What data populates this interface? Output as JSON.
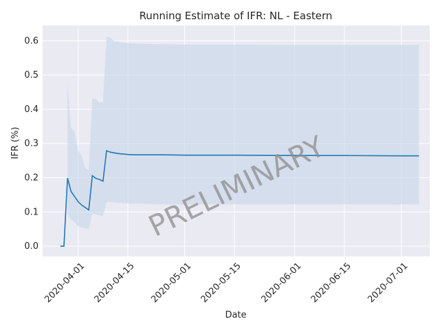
{
  "chart_data": {
    "type": "line",
    "title": "Running Estimate of IFR: NL - Eastern",
    "xlabel": "Date",
    "ylabel": "IFR (%)",
    "xlim": [
      "2020-03-22",
      "2020-07-09"
    ],
    "ylim": [
      -0.03,
      0.645
    ],
    "grid": true,
    "x_tick_labels": [
      "2020-04-01",
      "2020-04-15",
      "2020-05-01",
      "2020-05-15",
      "2020-06-01",
      "2020-06-15",
      "2020-07-01"
    ],
    "y_tick_labels": [
      "0.0",
      "0.1",
      "0.2",
      "0.3",
      "0.4",
      "0.5",
      "0.6"
    ],
    "watermark": "PRELIMINARY",
    "colors": {
      "line": "#1f77b4",
      "band": "#c6d6ea",
      "plot_bg": "#eaeaf2",
      "grid": "#ffffff",
      "watermark": "#8c8c8c"
    },
    "series": [
      {
        "x": [
          "2020-03-27",
          "2020-03-28",
          "2020-03-29",
          "2020-03-30",
          "2020-03-31",
          "2020-04-01",
          "2020-04-02",
          "2020-04-03",
          "2020-04-04",
          "2020-04-05",
          "2020-04-06",
          "2020-04-07",
          "2020-04-08",
          "2020-04-09",
          "2020-04-10",
          "2020-04-11",
          "2020-04-12",
          "2020-04-13",
          "2020-04-14",
          "2020-04-15",
          "2020-04-17",
          "2020-04-20",
          "2020-04-25",
          "2020-05-01",
          "2020-05-15",
          "2020-06-01",
          "2020-06-15",
          "2020-07-01",
          "2020-07-06"
        ],
        "values": [
          0.0,
          0.0,
          0.199,
          0.16,
          0.145,
          0.13,
          0.12,
          0.113,
          0.106,
          0.206,
          0.198,
          0.195,
          0.19,
          0.279,
          0.275,
          0.273,
          0.271,
          0.27,
          0.269,
          0.268,
          0.267,
          0.267,
          0.267,
          0.266,
          0.266,
          0.265,
          0.265,
          0.264,
          0.264
        ],
        "upper": [
          null,
          null,
          0.48,
          0.345,
          0.335,
          0.28,
          0.262,
          0.228,
          0.222,
          0.432,
          0.43,
          0.42,
          0.42,
          0.612,
          0.61,
          0.6,
          0.598,
          0.596,
          0.594,
          0.593,
          0.592,
          0.591,
          0.59,
          0.589,
          0.589,
          0.588,
          0.588,
          0.588,
          0.588
        ],
        "lower": [
          null,
          null,
          0.093,
          0.078,
          0.07,
          0.058,
          0.055,
          0.052,
          0.05,
          0.096,
          0.092,
          0.09,
          0.088,
          0.13,
          0.129,
          0.128,
          0.127,
          0.126,
          0.125,
          0.125,
          0.124,
          0.123,
          0.122,
          0.122,
          0.122,
          0.122,
          0.122,
          0.122,
          0.122
        ]
      }
    ]
  }
}
